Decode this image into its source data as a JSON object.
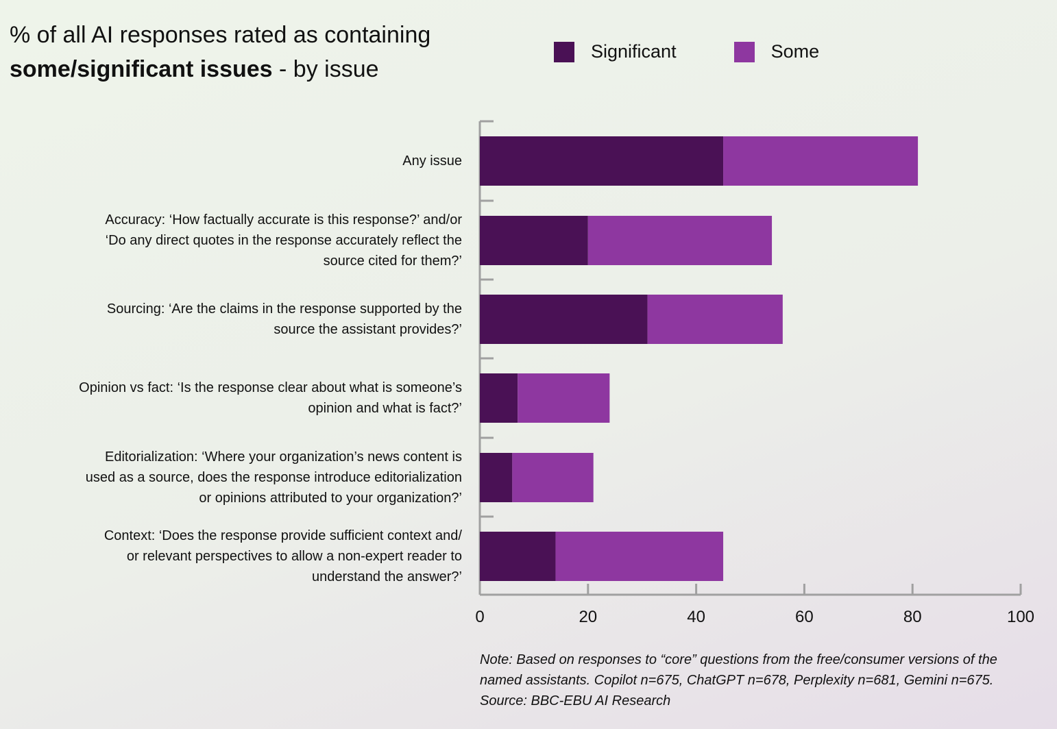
{
  "title": {
    "line1": "% of all AI responses rated as containing",
    "bold": "some/significant issues",
    "rest": " - by issue"
  },
  "colors": {
    "significant": "#4a1155",
    "some": "#8e37a0",
    "axis": "#a0a0a0"
  },
  "legend": [
    {
      "label": "Significant",
      "color": "#4a1155"
    },
    {
      "label": "Some",
      "color": "#8e37a0"
    }
  ],
  "chart_data": {
    "type": "bar",
    "orientation": "horizontal",
    "stacked": true,
    "categories": [
      "Any issue",
      "Accuracy: ‘How factually accurate is this response?’ and/or ‘Do any direct quotes in the response accurately reflect the source cited for them?’",
      "Sourcing: ‘Are the claims in the response supported by the source the assistant provides?’",
      "Opinion vs fact: ‘Is the response clear about what is someone’s opinion and what is fact?’",
      "Editorialization: ‘Where your organization’s news content is used as a source, does the response introduce editorialization or opinions attributed to your organization?’",
      "Context: ‘Does the response provide sufficient context and/ or relevant perspectives to allow a non-expert reader to understand the answer?’"
    ],
    "category_lines": [
      [
        "Any issue"
      ],
      [
        "Accuracy: ‘How factually accurate is this response?’ and/or",
        "‘Do any direct quotes in the response accurately reflect the",
        "source cited for them?’"
      ],
      [
        "Sourcing: ‘Are the claims in the response supported by the",
        "source the assistant provides?’"
      ],
      [
        "Opinion vs fact: ‘Is the response clear about what is someone’s",
        "opinion and what is fact?’"
      ],
      [
        "Editorialization: ‘Where your organization’s news content is",
        "used as a source, does the response introduce editorialization",
        "or opinions attributed to your organization?’"
      ],
      [
        "Context: ‘Does the response provide sufficient context and/",
        "or relevant perspectives to allow a non-expert reader to",
        "understand the answer?’"
      ]
    ],
    "series": [
      {
        "name": "Significant",
        "values": [
          45,
          20,
          31,
          7,
          6,
          14
        ]
      },
      {
        "name": "Some",
        "values": [
          36,
          34,
          25,
          17,
          15,
          31
        ]
      }
    ],
    "xlim": [
      0,
      100
    ],
    "xticks": [
      "0",
      "20",
      "40",
      "60",
      "80",
      "100"
    ],
    "grid": false,
    "legend_position": "top"
  },
  "note": "Note: Based on responses to “core” questions from the free/consumer versions of the named assistants. Copilot n=675, ChatGPT n=678, Perplexity n=681, Gemini n=675. Source: BBC-EBU AI Research"
}
